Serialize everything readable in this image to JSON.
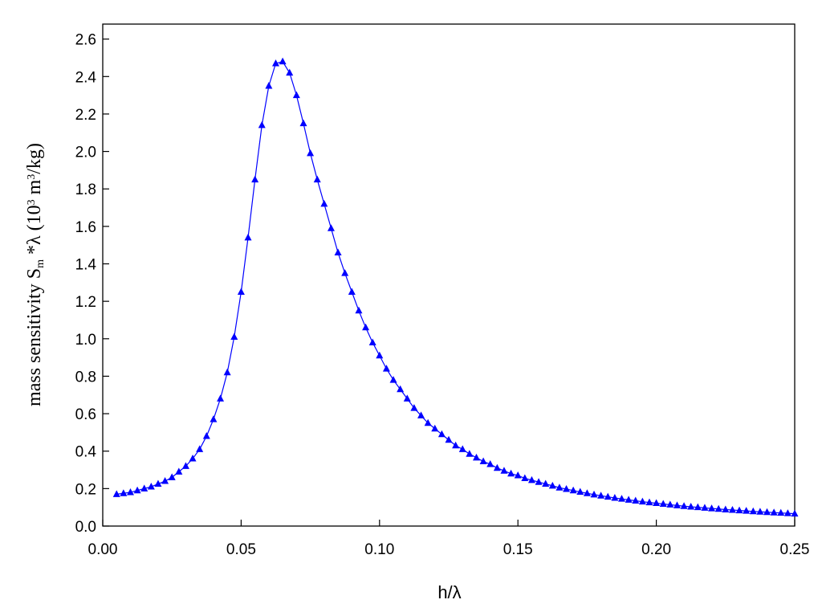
{
  "chart_data": {
    "type": "line",
    "xlabel": "h/λ",
    "ylabel": [
      "mass sensitivity S",
      "m",
      " *λ (10",
      "3",
      " m",
      "3",
      "/kg)"
    ],
    "color": "#0000ff",
    "marker": "triangle",
    "x": [
      0.005,
      0.0075,
      0.01,
      0.0125,
      0.015,
      0.0175,
      0.02,
      0.0225,
      0.025,
      0.0275,
      0.03,
      0.0325,
      0.035,
      0.0375,
      0.04,
      0.0425,
      0.045,
      0.0475,
      0.05,
      0.0525,
      0.055,
      0.0575,
      0.06,
      0.0625,
      0.065,
      0.0675,
      0.07,
      0.0725,
      0.075,
      0.0775,
      0.08,
      0.0825,
      0.085,
      0.0875,
      0.09,
      0.0925,
      0.095,
      0.0975,
      0.1,
      0.1025,
      0.105,
      0.1075,
      0.11,
      0.1125,
      0.115,
      0.1175,
      0.12,
      0.1225,
      0.125,
      0.1275,
      0.13,
      0.1325,
      0.135,
      0.1375,
      0.14,
      0.1425,
      0.145,
      0.1475,
      0.15,
      0.1525,
      0.155,
      0.1575,
      0.16,
      0.1625,
      0.165,
      0.1675,
      0.17,
      0.1725,
      0.175,
      0.1775,
      0.18,
      0.1825,
      0.185,
      0.1875,
      0.19,
      0.1925,
      0.195,
      0.1975,
      0.2,
      0.2025,
      0.205,
      0.2075,
      0.21,
      0.2125,
      0.215,
      0.2175,
      0.22,
      0.2225,
      0.225,
      0.2275,
      0.23,
      0.2325,
      0.235,
      0.2375,
      0.24,
      0.2425,
      0.245,
      0.2475,
      0.25
    ],
    "values": [
      0.17,
      0.175,
      0.18,
      0.19,
      0.2,
      0.21,
      0.225,
      0.24,
      0.26,
      0.29,
      0.32,
      0.36,
      0.41,
      0.48,
      0.57,
      0.68,
      0.82,
      1.01,
      1.25,
      1.54,
      1.85,
      2.14,
      2.35,
      2.47,
      2.48,
      2.42,
      2.3,
      2.15,
      1.99,
      1.85,
      1.72,
      1.59,
      1.46,
      1.35,
      1.25,
      1.15,
      1.06,
      0.98,
      0.91,
      0.84,
      0.78,
      0.73,
      0.68,
      0.63,
      0.59,
      0.55,
      0.52,
      0.49,
      0.46,
      0.43,
      0.41,
      0.385,
      0.365,
      0.345,
      0.33,
      0.31,
      0.295,
      0.28,
      0.27,
      0.255,
      0.245,
      0.235,
      0.225,
      0.215,
      0.205,
      0.197,
      0.19,
      0.182,
      0.175,
      0.168,
      0.162,
      0.156,
      0.15,
      0.145,
      0.14,
      0.135,
      0.13,
      0.126,
      0.122,
      0.118,
      0.114,
      0.11,
      0.106,
      0.103,
      0.1,
      0.097,
      0.094,
      0.091,
      0.088,
      0.086,
      0.083,
      0.081,
      0.078,
      0.076,
      0.074,
      0.072,
      0.07,
      0.068,
      0.066
    ],
    "xlim": [
      0,
      0.25
    ],
    "xticks": [
      {
        "value": 0,
        "label": "0.00"
      },
      0.05,
      {
        "value": 0.1,
        "label": "0.10"
      },
      0.15,
      {
        "value": 0.2,
        "label": "0.20"
      },
      0.25
    ],
    "ylim": [
      0,
      2.68
    ],
    "yticks": [
      {
        "value": 0,
        "label": "0.0"
      },
      0.2,
      0.4,
      0.6,
      0.8,
      {
        "value": 1,
        "label": "1.0"
      },
      1.2,
      1.4,
      1.6,
      1.8,
      {
        "value": 2,
        "label": "2.0"
      },
      2.2,
      2.4,
      2.6
    ]
  }
}
